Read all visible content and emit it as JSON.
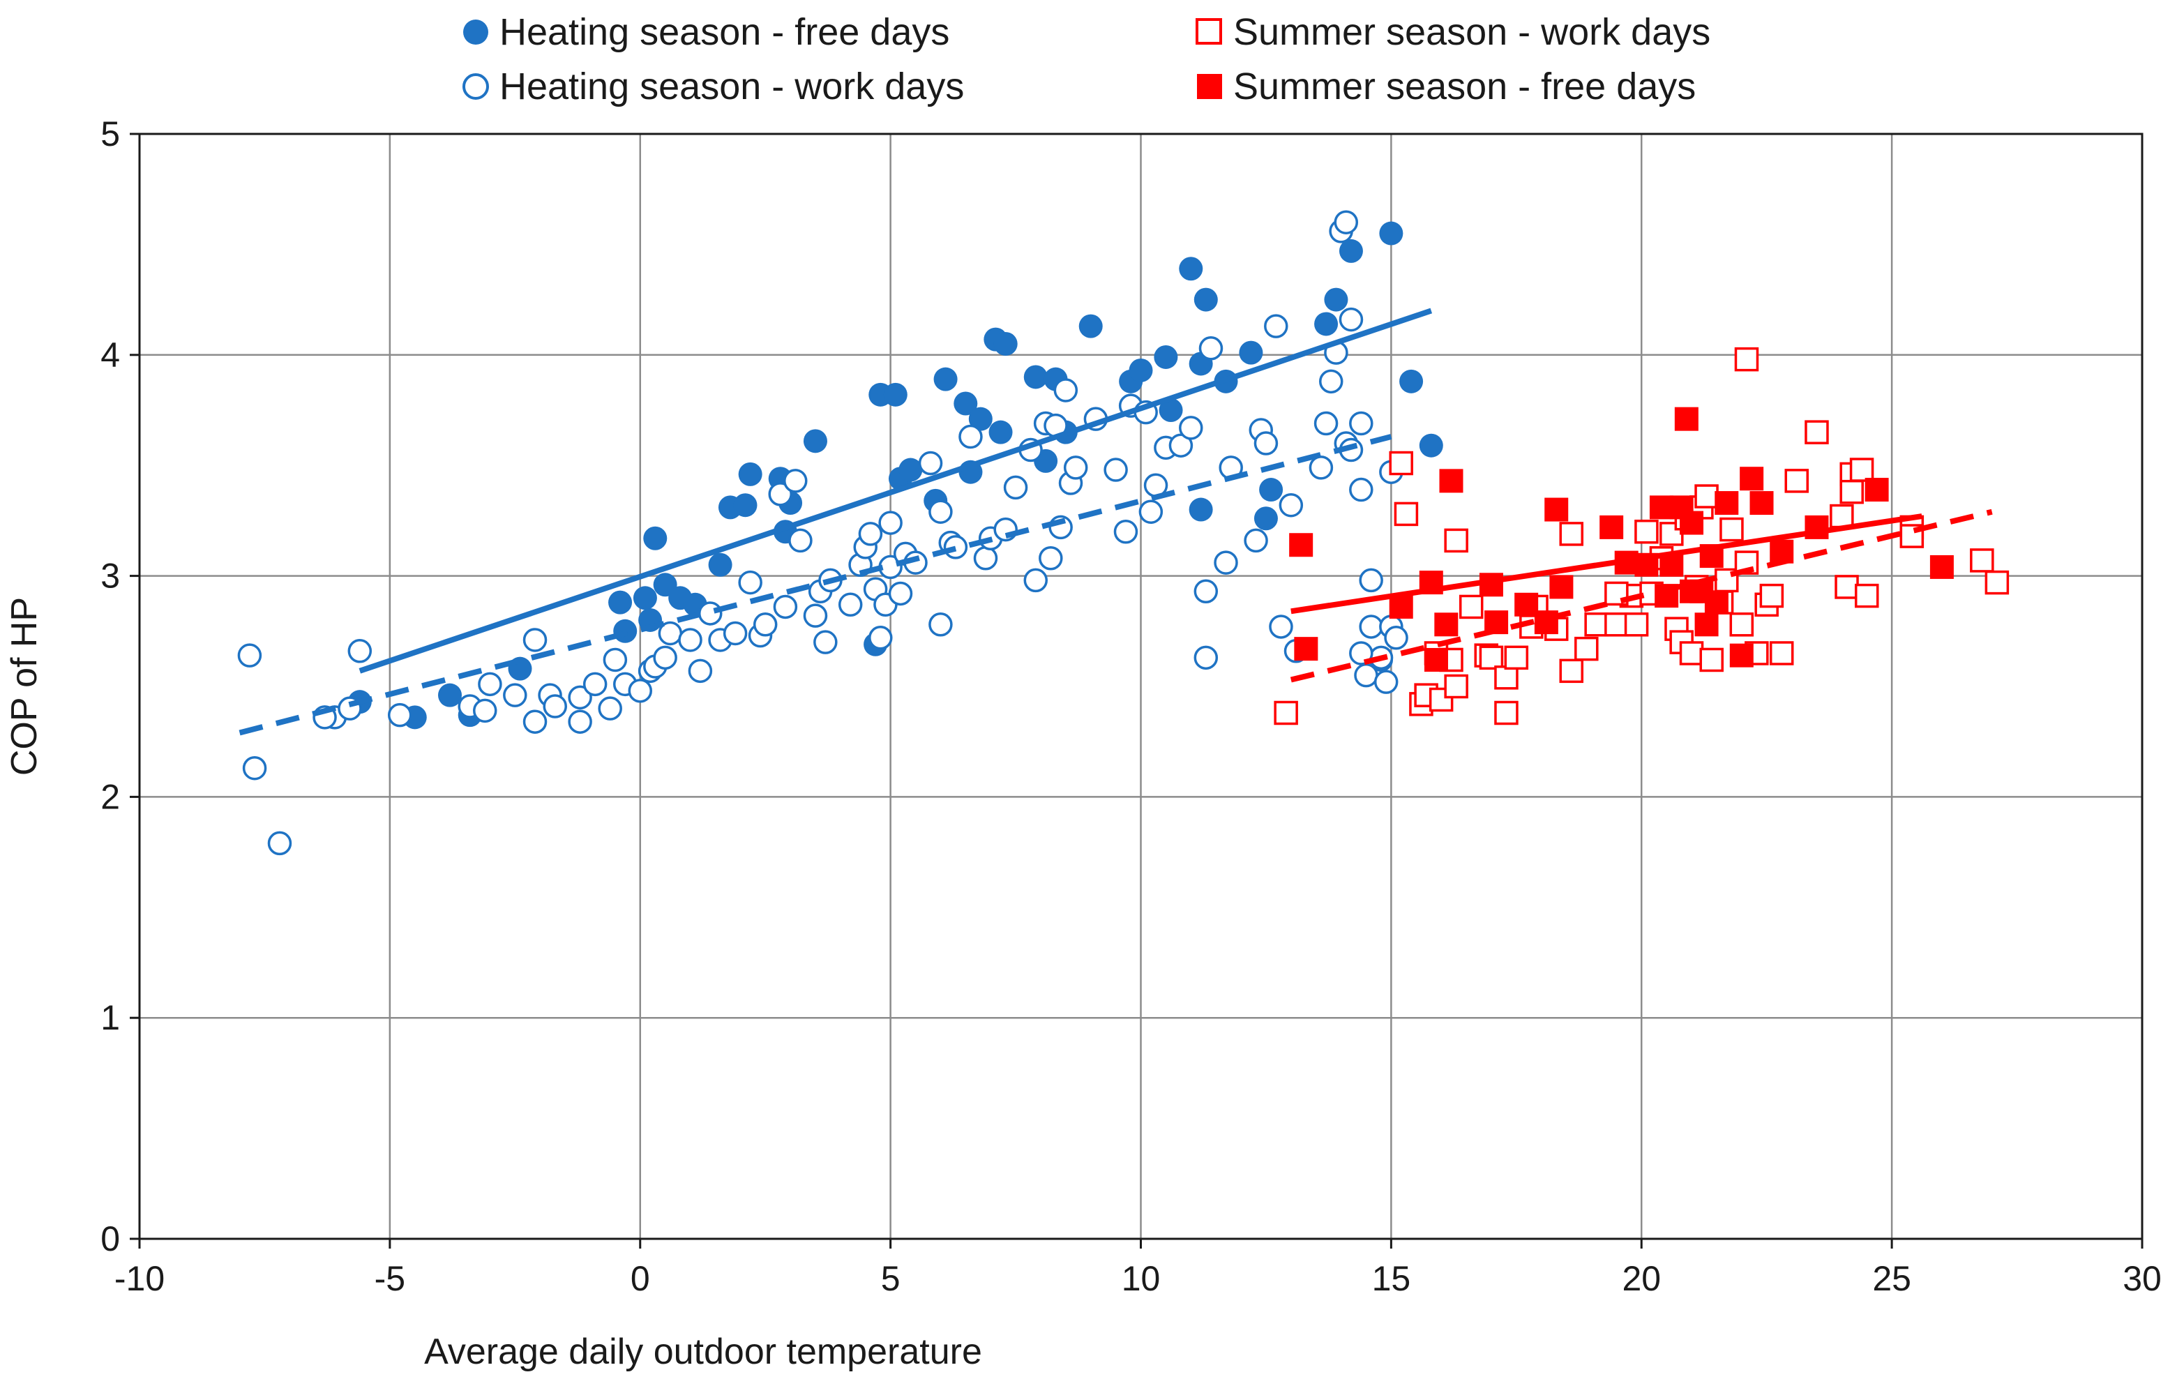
{
  "chart_data": {
    "type": "scatter",
    "title": "",
    "xlabel": "Average daily outdoor temperature",
    "ylabel": "COP of HP",
    "xlim": [
      -10,
      30
    ],
    "ylim": [
      0,
      5
    ],
    "x_ticks": [
      "-10",
      "-5",
      "0",
      "5",
      "10",
      "15",
      "20",
      "25",
      "30"
    ],
    "y_ticks": [
      "0",
      "1",
      "2",
      "3",
      "4",
      "5"
    ],
    "grid": true,
    "legend_position": "top",
    "series": [
      {
        "name": "Heating season - free days",
        "marker": "circle",
        "filled": true,
        "color": "#1f73c4",
        "trend": {
          "style": "solid",
          "x": [
            -5.6,
            15.8
          ],
          "y": [
            2.57,
            4.2
          ]
        },
        "points": [
          [
            -5.6,
            2.43
          ],
          [
            -4.5,
            2.36
          ],
          [
            -3.8,
            2.46
          ],
          [
            -3.4,
            2.37
          ],
          [
            -2.4,
            2.58
          ],
          [
            -0.4,
            2.88
          ],
          [
            -0.3,
            2.75
          ],
          [
            0.1,
            2.9
          ],
          [
            0.3,
            3.17
          ],
          [
            0.5,
            2.96
          ],
          [
            0.8,
            2.9
          ],
          [
            1.1,
            2.87
          ],
          [
            1.6,
            3.05
          ],
          [
            1.8,
            3.31
          ],
          [
            2.1,
            3.32
          ],
          [
            2.2,
            3.46
          ],
          [
            2.8,
            3.44
          ],
          [
            3.0,
            3.33
          ],
          [
            2.9,
            3.2
          ],
          [
            3.5,
            3.61
          ],
          [
            4.7,
            2.69
          ],
          [
            4.8,
            3.82
          ],
          [
            5.1,
            3.82
          ],
          [
            5.2,
            3.44
          ],
          [
            5.4,
            3.48
          ],
          [
            5.9,
            3.34
          ],
          [
            6.1,
            3.89
          ],
          [
            6.5,
            3.78
          ],
          [
            6.6,
            3.47
          ],
          [
            6.8,
            3.71
          ],
          [
            7.1,
            4.07
          ],
          [
            7.3,
            4.05
          ],
          [
            7.2,
            3.65
          ],
          [
            7.9,
            3.9
          ],
          [
            8.1,
            3.52
          ],
          [
            8.3,
            3.89
          ],
          [
            8.5,
            3.65
          ],
          [
            9.0,
            4.13
          ],
          [
            9.8,
            3.88
          ],
          [
            10.0,
            3.93
          ],
          [
            10.5,
            3.99
          ],
          [
            10.6,
            3.75
          ],
          [
            11.0,
            4.39
          ],
          [
            11.2,
            3.96
          ],
          [
            11.3,
            4.25
          ],
          [
            11.2,
            3.3
          ],
          [
            11.7,
            3.88
          ],
          [
            12.2,
            4.01
          ],
          [
            12.5,
            3.26
          ],
          [
            12.6,
            3.39
          ],
          [
            13.7,
            4.14
          ],
          [
            13.9,
            4.25
          ],
          [
            14.2,
            4.47
          ],
          [
            15.0,
            4.55
          ],
          [
            15.4,
            3.88
          ],
          [
            15.8,
            3.59
          ],
          [
            14.8,
            2.62
          ],
          [
            0.2,
            2.8
          ]
        ]
      },
      {
        "name": "Heating season - work days",
        "marker": "circle",
        "filled": false,
        "color": "#1f73c4",
        "trend": {
          "style": "dashed",
          "x": [
            -8.0,
            15.0
          ],
          "y": [
            2.29,
            3.63
          ]
        },
        "points": [
          [
            -7.8,
            2.64
          ],
          [
            -7.7,
            2.13
          ],
          [
            -7.2,
            1.79
          ],
          [
            -6.1,
            2.36
          ],
          [
            -5.8,
            2.4
          ],
          [
            -5.6,
            2.66
          ],
          [
            -4.8,
            2.37
          ],
          [
            -3.4,
            2.41
          ],
          [
            -3.1,
            2.39
          ],
          [
            -3.0,
            2.51
          ],
          [
            -2.1,
            2.34
          ],
          [
            -2.1,
            2.71
          ],
          [
            -1.8,
            2.46
          ],
          [
            -1.7,
            2.41
          ],
          [
            -1.2,
            2.45
          ],
          [
            -1.2,
            2.34
          ],
          [
            -0.9,
            2.51
          ],
          [
            -0.6,
            2.4
          ],
          [
            -0.5,
            2.62
          ],
          [
            -0.3,
            2.51
          ],
          [
            0.0,
            2.48
          ],
          [
            0.2,
            2.57
          ],
          [
            0.3,
            2.59
          ],
          [
            0.5,
            2.63
          ],
          [
            0.6,
            2.74
          ],
          [
            1.0,
            2.71
          ],
          [
            1.2,
            2.57
          ],
          [
            1.4,
            2.83
          ],
          [
            1.6,
            2.71
          ],
          [
            1.9,
            2.74
          ],
          [
            2.2,
            2.97
          ],
          [
            2.4,
            2.73
          ],
          [
            2.5,
            2.78
          ],
          [
            2.8,
            3.37
          ],
          [
            2.9,
            2.86
          ],
          [
            3.1,
            3.43
          ],
          [
            3.2,
            3.16
          ],
          [
            3.5,
            2.82
          ],
          [
            3.6,
            2.93
          ],
          [
            3.7,
            2.7
          ],
          [
            3.8,
            2.98
          ],
          [
            4.2,
            2.87
          ],
          [
            4.4,
            3.05
          ],
          [
            4.5,
            3.13
          ],
          [
            4.6,
            3.19
          ],
          [
            4.7,
            2.94
          ],
          [
            4.8,
            2.72
          ],
          [
            4.9,
            2.87
          ],
          [
            5.0,
            3.24
          ],
          [
            5.0,
            3.04
          ],
          [
            5.2,
            2.92
          ],
          [
            5.3,
            3.1
          ],
          [
            5.5,
            3.06
          ],
          [
            5.8,
            3.51
          ],
          [
            6.0,
            2.78
          ],
          [
            6.0,
            3.29
          ],
          [
            6.2,
            3.15
          ],
          [
            6.3,
            3.13
          ],
          [
            6.6,
            3.63
          ],
          [
            6.9,
            3.08
          ],
          [
            7.0,
            3.17
          ],
          [
            7.3,
            3.21
          ],
          [
            7.5,
            3.4
          ],
          [
            7.8,
            3.57
          ],
          [
            7.9,
            2.98
          ],
          [
            8.1,
            3.69
          ],
          [
            8.2,
            3.08
          ],
          [
            8.3,
            3.68
          ],
          [
            8.4,
            3.22
          ],
          [
            8.5,
            3.84
          ],
          [
            8.6,
            3.42
          ],
          [
            8.7,
            3.49
          ],
          [
            9.1,
            3.71
          ],
          [
            9.5,
            3.48
          ],
          [
            9.7,
            3.2
          ],
          [
            9.8,
            3.77
          ],
          [
            10.1,
            3.74
          ],
          [
            10.2,
            3.29
          ],
          [
            10.3,
            3.41
          ],
          [
            10.5,
            3.58
          ],
          [
            10.8,
            3.59
          ],
          [
            11.0,
            3.67
          ],
          [
            11.3,
            2.63
          ],
          [
            11.3,
            2.93
          ],
          [
            11.4,
            4.03
          ],
          [
            11.7,
            3.06
          ],
          [
            11.8,
            3.49
          ],
          [
            12.3,
            3.16
          ],
          [
            12.4,
            3.66
          ],
          [
            12.5,
            3.6
          ],
          [
            12.7,
            4.13
          ],
          [
            12.8,
            2.77
          ],
          [
            13.0,
            3.32
          ],
          [
            13.1,
            2.66
          ],
          [
            13.6,
            3.49
          ],
          [
            13.7,
            3.69
          ],
          [
            13.8,
            3.88
          ],
          [
            13.9,
            4.01
          ],
          [
            14.0,
            4.56
          ],
          [
            14.1,
            4.6
          ],
          [
            14.1,
            3.6
          ],
          [
            14.2,
            3.57
          ],
          [
            14.2,
            4.16
          ],
          [
            14.4,
            3.69
          ],
          [
            14.4,
            3.39
          ],
          [
            14.5,
            2.55
          ],
          [
            14.6,
            2.98
          ],
          [
            14.6,
            2.77
          ],
          [
            14.8,
            2.63
          ],
          [
            14.9,
            2.52
          ],
          [
            15.0,
            2.77
          ],
          [
            15.1,
            2.72
          ],
          [
            15.0,
            3.47
          ],
          [
            14.4,
            2.65
          ],
          [
            -2.5,
            2.46
          ],
          [
            -6.3,
            2.36
          ]
        ]
      },
      {
        "name": "Summer season - work days",
        "marker": "square",
        "filled": false,
        "color": "#ff0000",
        "trend": {
          "style": "dashed",
          "x": [
            13.0,
            27.0
          ],
          "y": [
            2.53,
            3.29
          ]
        },
        "points": [
          [
            12.9,
            2.38
          ],
          [
            15.2,
            3.51
          ],
          [
            15.3,
            3.28
          ],
          [
            15.6,
            2.42
          ],
          [
            15.7,
            2.46
          ],
          [
            15.9,
            2.65
          ],
          [
            16.0,
            2.44
          ],
          [
            16.2,
            2.62
          ],
          [
            16.3,
            3.16
          ],
          [
            16.3,
            2.5
          ],
          [
            16.6,
            2.86
          ],
          [
            16.9,
            2.64
          ],
          [
            17.0,
            2.63
          ],
          [
            17.3,
            2.38
          ],
          [
            17.3,
            2.54
          ],
          [
            17.5,
            2.63
          ],
          [
            17.9,
            2.86
          ],
          [
            18.3,
            2.76
          ],
          [
            18.6,
            3.19
          ],
          [
            18.6,
            2.57
          ],
          [
            18.9,
            2.67
          ],
          [
            19.1,
            2.78
          ],
          [
            19.5,
            2.78
          ],
          [
            19.8,
            2.91
          ],
          [
            19.9,
            2.78
          ],
          [
            20.1,
            3.2
          ],
          [
            20.2,
            2.92
          ],
          [
            20.4,
            3.08
          ],
          [
            20.6,
            3.19
          ],
          [
            20.7,
            2.76
          ],
          [
            20.8,
            2.7
          ],
          [
            20.9,
            3.26
          ],
          [
            21.0,
            2.65
          ],
          [
            21.1,
            2.95
          ],
          [
            21.2,
            3.31
          ],
          [
            21.3,
            3.36
          ],
          [
            21.4,
            2.62
          ],
          [
            21.6,
            2.88
          ],
          [
            21.7,
            2.98
          ],
          [
            21.8,
            3.21
          ],
          [
            22.0,
            2.78
          ],
          [
            22.1,
            3.98
          ],
          [
            22.1,
            3.06
          ],
          [
            22.3,
            2.65
          ],
          [
            22.5,
            2.87
          ],
          [
            22.6,
            2.91
          ],
          [
            22.8,
            2.65
          ],
          [
            23.1,
            3.43
          ],
          [
            23.5,
            3.65
          ],
          [
            24.0,
            3.27
          ],
          [
            24.1,
            2.95
          ],
          [
            24.2,
            3.46
          ],
          [
            24.2,
            3.38
          ],
          [
            24.4,
            3.48
          ],
          [
            24.5,
            2.91
          ],
          [
            25.4,
            3.22
          ],
          [
            25.4,
            3.18
          ],
          [
            26.8,
            3.07
          ],
          [
            27.1,
            2.97
          ],
          [
            19.5,
            2.92
          ],
          [
            17.8,
            2.77
          ]
        ]
      },
      {
        "name": "Summer season - free days",
        "marker": "square",
        "filled": true,
        "color": "#ff0000",
        "trend": {
          "style": "solid",
          "x": [
            13.0,
            25.6
          ],
          "y": [
            2.84,
            3.27
          ]
        },
        "points": [
          [
            13.2,
            3.14
          ],
          [
            13.3,
            2.67
          ],
          [
            15.2,
            2.86
          ],
          [
            15.8,
            2.97
          ],
          [
            15.9,
            2.62
          ],
          [
            16.1,
            2.78
          ],
          [
            16.2,
            3.43
          ],
          [
            17.0,
            2.96
          ],
          [
            17.1,
            2.79
          ],
          [
            17.7,
            2.87
          ],
          [
            18.1,
            2.79
          ],
          [
            18.3,
            3.3
          ],
          [
            18.4,
            2.95
          ],
          [
            19.4,
            3.22
          ],
          [
            19.7,
            3.06
          ],
          [
            20.1,
            3.05
          ],
          [
            20.4,
            3.31
          ],
          [
            20.5,
            2.91
          ],
          [
            20.8,
            3.31
          ],
          [
            20.9,
            3.71
          ],
          [
            21.0,
            3.24
          ],
          [
            21.0,
            2.93
          ],
          [
            21.2,
            2.93
          ],
          [
            21.3,
            2.78
          ],
          [
            21.5,
            2.88
          ],
          [
            21.7,
            3.33
          ],
          [
            22.0,
            2.64
          ],
          [
            22.2,
            3.44
          ],
          [
            22.4,
            3.33
          ],
          [
            22.8,
            3.11
          ],
          [
            23.5,
            3.22
          ],
          [
            24.7,
            3.39
          ],
          [
            26.0,
            3.04
          ],
          [
            20.6,
            3.05
          ],
          [
            21.4,
            3.09
          ]
        ]
      }
    ]
  }
}
